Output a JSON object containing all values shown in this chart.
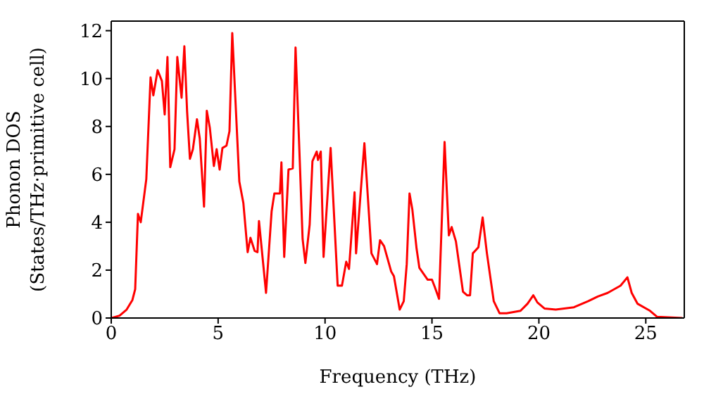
{
  "chart_data": {
    "type": "line",
    "xlabel": "Frequency (THz)",
    "ylabel": "Phonon DOS\n(States/THz·primitive cell)",
    "xlim": [
      0,
      26.8
    ],
    "ylim": [
      0,
      12.4
    ],
    "xticks": [
      0,
      5,
      10,
      15,
      20,
      25
    ],
    "yticks": [
      0,
      2,
      4,
      6,
      8,
      10,
      12
    ],
    "marker": "none",
    "line_style": "solid",
    "series": [
      {
        "color": "#ff0000",
        "x": [
          0,
          0.39,
          0.72,
          0.99,
          1.12,
          1.25,
          1.38,
          1.64,
          1.84,
          1.97,
          2.17,
          2.37,
          2.5,
          2.63,
          2.76,
          2.96,
          3.09,
          3.29,
          3.42,
          3.55,
          3.68,
          3.82,
          4.01,
          4.14,
          4.34,
          4.47,
          4.61,
          4.8,
          4.93,
          5.07,
          5.2,
          5.39,
          5.53,
          5.66,
          5.99,
          6.18,
          6.38,
          6.51,
          6.71,
          6.84,
          6.91,
          7.24,
          7.5,
          7.63,
          7.89,
          7.96,
          8.09,
          8.29,
          8.49,
          8.62,
          8.82,
          8.95,
          9.08,
          9.28,
          9.41,
          9.61,
          9.67,
          9.8,
          9.93,
          10.26,
          10.59,
          10.79,
          10.99,
          11.12,
          11.38,
          11.45,
          11.84,
          12.17,
          12.43,
          12.57,
          12.76,
          13.09,
          13.22,
          13.49,
          13.68,
          13.82,
          13.95,
          14.08,
          14.28,
          14.41,
          14.8,
          15.0,
          15.13,
          15.33,
          15.59,
          15.79,
          15.92,
          16.12,
          16.45,
          16.64,
          16.78,
          16.91,
          17.17,
          17.37,
          17.57,
          17.89,
          18.16,
          18.49,
          19.14,
          19.47,
          19.74,
          19.93,
          20.26,
          20.79,
          21.64,
          22.3,
          22.76,
          23.22,
          23.82,
          24.14,
          24.34,
          24.61,
          25.2,
          25.53,
          26.71
        ],
        "values": [
          0,
          0.1,
          0.35,
          0.75,
          1.2,
          4.35,
          4.0,
          5.8,
          10.05,
          9.3,
          10.35,
          9.9,
          8.5,
          10.9,
          6.3,
          7.05,
          10.9,
          9.2,
          11.35,
          8.6,
          6.65,
          7.05,
          8.3,
          7.5,
          4.65,
          8.65,
          7.95,
          6.35,
          7.05,
          6.2,
          7.1,
          7.2,
          7.8,
          11.9,
          5.7,
          4.8,
          2.75,
          3.35,
          2.8,
          2.75,
          4.05,
          1.05,
          4.45,
          5.2,
          5.2,
          6.5,
          2.55,
          6.2,
          6.25,
          11.3,
          6.5,
          3.3,
          2.3,
          3.9,
          6.55,
          6.95,
          6.6,
          6.95,
          2.55,
          7.1,
          1.35,
          1.35,
          2.35,
          2.05,
          5.25,
          2.7,
          7.3,
          2.7,
          2.25,
          3.25,
          3.0,
          1.95,
          1.75,
          0.35,
          0.7,
          2.25,
          5.2,
          4.55,
          2.9,
          2.1,
          1.6,
          1.6,
          1.3,
          0.8,
          7.35,
          3.45,
          3.8,
          3.2,
          1.1,
          0.95,
          0.95,
          2.7,
          2.95,
          4.2,
          2.7,
          0.7,
          0.2,
          0.2,
          0.3,
          0.6,
          0.95,
          0.65,
          0.4,
          0.35,
          0.45,
          0.7,
          0.9,
          1.05,
          1.35,
          1.7,
          1.05,
          0.6,
          0.3,
          0.05,
          0
        ]
      }
    ]
  }
}
